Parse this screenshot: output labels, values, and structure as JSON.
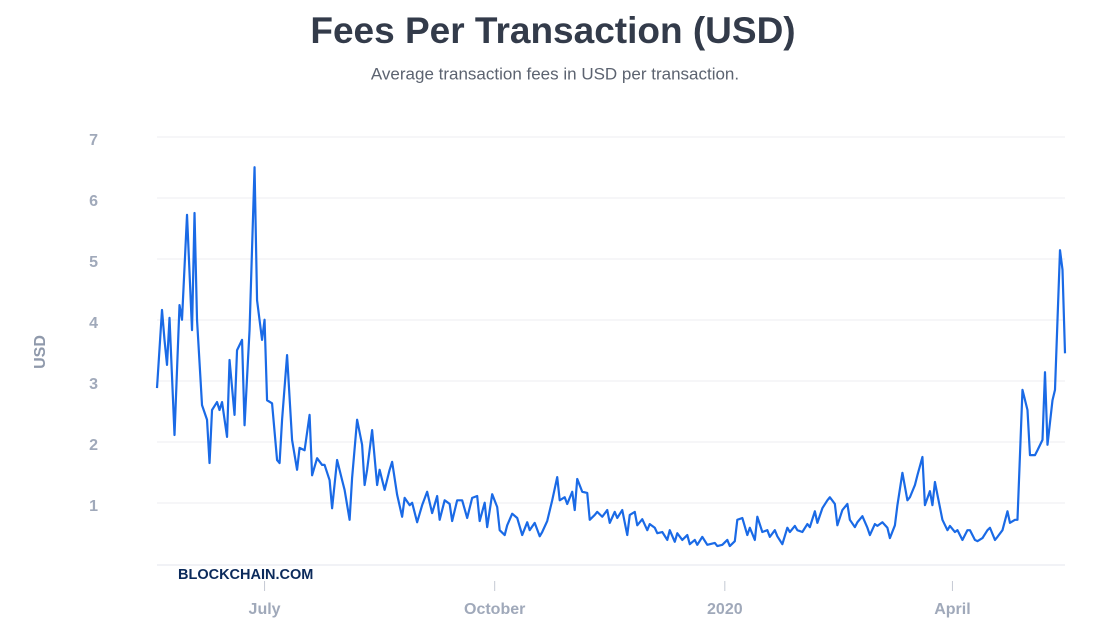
{
  "chart_data": {
    "type": "line",
    "title": "Fees Per Transaction (USD)",
    "subtitle": "Average transaction fees in USD per transaction.",
    "y_label": "USD",
    "watermark": "BLOCKCHAIN.COM",
    "color": "#1a6ae6",
    "grid": true,
    "xlim": [
      0,
      363
    ],
    "xticks": [
      {
        "value": 43,
        "label": "July"
      },
      {
        "value": 135,
        "label": "October"
      },
      {
        "value": 227,
        "label": "2020"
      },
      {
        "value": 318,
        "label": "April"
      }
    ],
    "ylim": [
      0,
      7
    ],
    "yticks": [
      1,
      2,
      3,
      4,
      5,
      6,
      7
    ],
    "x": [
      0,
      2,
      3,
      4,
      5,
      7,
      9,
      10,
      12,
      14,
      15,
      16,
      18,
      20,
      21,
      22,
      24,
      25,
      26,
      28,
      29,
      31,
      32,
      34,
      35,
      37,
      39,
      40,
      42,
      43,
      44,
      46,
      48,
      49,
      50,
      52,
      54,
      56,
      57,
      59,
      61,
      62,
      64,
      66,
      67,
      69,
      70,
      72,
      74,
      75,
      77,
      78,
      80,
      82,
      83,
      84,
      86,
      88,
      89,
      91,
      93,
      94,
      96,
      98,
      99,
      101,
      102,
      104,
      106,
      108,
      110,
      112,
      113,
      115,
      117,
      118,
      120,
      122,
      124,
      126,
      128,
      129,
      131,
      132,
      134,
      136,
      137,
      139,
      140,
      142,
      144,
      146,
      148,
      149,
      151,
      153,
      154,
      156,
      158,
      160,
      161,
      163,
      164,
      166,
      167,
      168,
      170,
      172,
      173,
      175,
      176,
      178,
      180,
      181,
      183,
      184,
      186,
      188,
      189,
      191,
      192,
      194,
      196,
      197,
      199,
      200,
      202,
      204,
      205,
      207,
      208,
      210,
      212,
      213,
      215,
      216,
      218,
      220,
      221,
      223,
      224,
      226,
      228,
      229,
      231,
      232,
      234,
      236,
      237,
      239,
      240,
      242,
      244,
      245,
      247,
      248,
      250,
      252,
      253,
      255,
      256,
      258,
      260,
      261,
      263,
      264,
      266,
      268,
      269,
      271,
      272,
      274,
      276,
      277,
      279,
      280,
      282,
      284,
      285,
      287,
      288,
      290,
      292,
      293,
      295,
      296,
      298,
      300,
      301,
      303,
      304,
      306,
      307,
      309,
      310,
      311,
      312,
      314,
      316,
      317,
      319,
      320,
      322,
      324,
      325,
      327,
      328,
      330,
      332,
      333,
      335,
      336,
      338,
      340,
      341,
      343,
      344,
      346,
      348,
      349,
      351,
      352,
      354,
      355,
      356,
      358,
      359,
      361,
      362,
      363
    ],
    "values": [
      2.95,
      4.23,
      3.74,
      3.33,
      4.1,
      2.18,
      4.31,
      4.07,
      5.79,
      3.9,
      5.82,
      4.07,
      2.67,
      2.43,
      1.72,
      2.59,
      2.72,
      2.59,
      2.72,
      2.15,
      3.41,
      2.51,
      3.57,
      3.74,
      2.34,
      3.9,
      6.57,
      4.39,
      3.74,
      4.07,
      2.75,
      2.7,
      1.77,
      1.72,
      2.43,
      3.49,
      2.1,
      1.61,
      1.97,
      1.93,
      2.51,
      1.52,
      1.8,
      1.69,
      1.69,
      1.44,
      0.98,
      1.77,
      1.44,
      1.28,
      0.79,
      1.48,
      2.43,
      2.02,
      1.36,
      1.61,
      2.26,
      1.36,
      1.61,
      1.28,
      1.61,
      1.74,
      1.2,
      0.84,
      1.15,
      1.03,
      1.07,
      0.75,
      1.03,
      1.25,
      0.9,
      1.18,
      0.79,
      1.11,
      1.05,
      0.77,
      1.11,
      1.11,
      0.82,
      1.15,
      1.18,
      0.77,
      1.07,
      0.67,
      1.21,
      1.0,
      0.62,
      0.54,
      0.7,
      0.89,
      0.82,
      0.54,
      0.75,
      0.62,
      0.74,
      0.52,
      0.59,
      0.77,
      1.11,
      1.49,
      1.11,
      1.16,
      1.05,
      1.25,
      0.95,
      1.46,
      1.25,
      1.23,
      0.79,
      0.87,
      0.92,
      0.84,
      0.95,
      0.74,
      0.92,
      0.82,
      0.95,
      0.54,
      0.87,
      0.92,
      0.7,
      0.8,
      0.62,
      0.72,
      0.66,
      0.57,
      0.59,
      0.46,
      0.62,
      0.43,
      0.57,
      0.46,
      0.54,
      0.39,
      0.46,
      0.38,
      0.51,
      0.38,
      0.39,
      0.41,
      0.36,
      0.38,
      0.46,
      0.36,
      0.44,
      0.79,
      0.82,
      0.54,
      0.66,
      0.46,
      0.84,
      0.59,
      0.62,
      0.51,
      0.62,
      0.52,
      0.39,
      0.66,
      0.59,
      0.69,
      0.62,
      0.59,
      0.72,
      0.67,
      0.93,
      0.74,
      0.98,
      1.11,
      1.16,
      1.05,
      0.7,
      0.95,
      1.05,
      0.79,
      0.67,
      0.75,
      0.85,
      0.66,
      0.54,
      0.72,
      0.69,
      0.75,
      0.66,
      0.49,
      0.7,
      1.03,
      1.56,
      1.11,
      1.16,
      1.36,
      1.52,
      1.82,
      1.03,
      1.26,
      1.03,
      1.41,
      1.2,
      0.79,
      0.62,
      0.69,
      0.59,
      0.62,
      0.46,
      0.62,
      0.62,
      0.46,
      0.44,
      0.49,
      0.62,
      0.66,
      0.46,
      0.51,
      0.62,
      0.93,
      0.74,
      0.79,
      0.79,
      2.92,
      2.59,
      1.85,
      1.85,
      1.93,
      2.1,
      3.21,
      2.02,
      2.75,
      2.92,
      5.21,
      4.89,
      3.52
    ]
  }
}
